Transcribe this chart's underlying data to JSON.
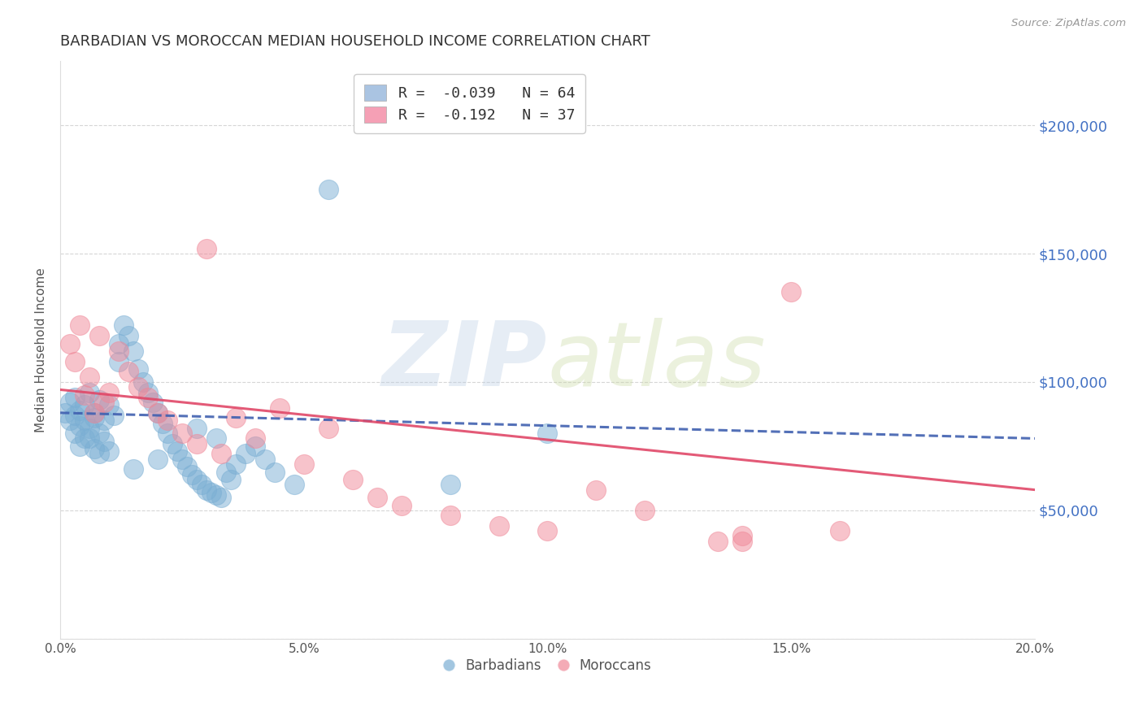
{
  "title": "BARBADIAN VS MOROCCAN MEDIAN HOUSEHOLD INCOME CORRELATION CHART",
  "source": "Source: ZipAtlas.com",
  "ylabel": "Median Household Income",
  "watermark": "ZIPatlas",
  "legend_entries": [
    {
      "label": "R =  -0.039   N = 64",
      "color": "#aac4e2"
    },
    {
      "label": "R =  -0.192   N = 37",
      "color": "#f5a0b5"
    }
  ],
  "barbadians_label": "Barbadians",
  "moroccans_label": "Moroccans",
  "xlim": [
    0.0,
    0.2
  ],
  "ylim": [
    0,
    225000
  ],
  "yticks": [
    0,
    50000,
    100000,
    150000,
    200000
  ],
  "ytick_labels": [
    "",
    "$50,000",
    "$100,000",
    "$150,000",
    "$200,000"
  ],
  "xticks": [
    0.0,
    0.05,
    0.1,
    0.15,
    0.2
  ],
  "xtick_labels": [
    "0.0%",
    "5.0%",
    "10.0%",
    "15.0%",
    "20.0%"
  ],
  "blue_color": "#7bafd4",
  "pink_color": "#f08898",
  "blue_line_color": "#4060b0",
  "pink_line_color": "#e04868",
  "ytick_color": "#4472c4",
  "background_color": "#ffffff",
  "grid_color": "#bbbbbb",
  "blue_trend_x": [
    0.0,
    0.2
  ],
  "blue_trend_y": [
    88000,
    78000
  ],
  "pink_trend_x": [
    0.0,
    0.2
  ],
  "pink_trend_y": [
    97000,
    58000
  ],
  "barbadians_x": [
    0.001,
    0.002,
    0.002,
    0.003,
    0.003,
    0.003,
    0.004,
    0.004,
    0.004,
    0.005,
    0.005,
    0.005,
    0.006,
    0.006,
    0.007,
    0.007,
    0.007,
    0.008,
    0.008,
    0.009,
    0.009,
    0.01,
    0.01,
    0.011,
    0.012,
    0.012,
    0.013,
    0.014,
    0.015,
    0.016,
    0.017,
    0.018,
    0.019,
    0.02,
    0.021,
    0.022,
    0.023,
    0.024,
    0.025,
    0.026,
    0.027,
    0.028,
    0.029,
    0.03,
    0.031,
    0.032,
    0.033,
    0.034,
    0.035,
    0.036,
    0.038,
    0.04,
    0.042,
    0.044,
    0.048,
    0.055,
    0.032,
    0.028,
    0.02,
    0.015,
    0.008,
    0.006,
    0.1,
    0.08
  ],
  "barbadians_y": [
    88000,
    85000,
    92000,
    80000,
    87000,
    94000,
    83000,
    89000,
    75000,
    91000,
    85000,
    78000,
    82000,
    96000,
    88000,
    74000,
    86000,
    80000,
    93000,
    77000,
    85000,
    91000,
    73000,
    87000,
    115000,
    108000,
    122000,
    118000,
    112000,
    105000,
    100000,
    96000,
    92000,
    88000,
    84000,
    80000,
    76000,
    73000,
    70000,
    67000,
    64000,
    62000,
    60000,
    58000,
    57000,
    56000,
    55000,
    65000,
    62000,
    68000,
    72000,
    75000,
    70000,
    65000,
    60000,
    175000,
    78000,
    82000,
    70000,
    66000,
    72000,
    78000,
    80000,
    60000
  ],
  "moroccans_x": [
    0.002,
    0.003,
    0.004,
    0.005,
    0.006,
    0.007,
    0.008,
    0.009,
    0.01,
    0.012,
    0.014,
    0.016,
    0.018,
    0.02,
    0.022,
    0.025,
    0.028,
    0.03,
    0.033,
    0.036,
    0.04,
    0.045,
    0.05,
    0.055,
    0.06,
    0.065,
    0.07,
    0.08,
    0.09,
    0.1,
    0.11,
    0.12,
    0.135,
    0.14,
    0.15,
    0.16,
    0.14
  ],
  "moroccans_y": [
    115000,
    108000,
    122000,
    95000,
    102000,
    88000,
    118000,
    92000,
    96000,
    112000,
    104000,
    98000,
    94000,
    88000,
    85000,
    80000,
    76000,
    152000,
    72000,
    86000,
    78000,
    90000,
    68000,
    82000,
    62000,
    55000,
    52000,
    48000,
    44000,
    42000,
    58000,
    50000,
    38000,
    38000,
    135000,
    42000,
    40000
  ]
}
